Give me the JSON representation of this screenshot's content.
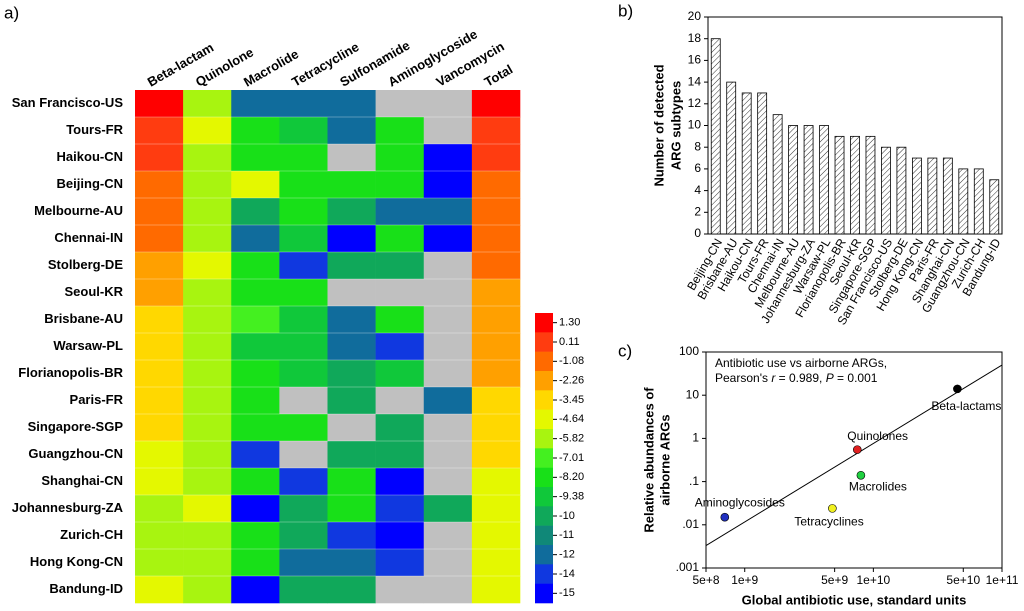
{
  "chart_data": [
    {
      "type": "heatmap",
      "panel": "a)",
      "columns": [
        "Beta-lactam",
        "Quinolone",
        "Macrolide",
        "Tetracycline",
        "Sulfonamide",
        "Aminoglycoside",
        "Vancomycin",
        "Total"
      ],
      "rows": [
        "San Francisco-US",
        "Tours-FR",
        "Haikou-CN",
        "Beijing-CN",
        "Melbourne-AU",
        "Chennai-IN",
        "Stolberg-DE",
        "Seoul-KR",
        "Brisbane-AU",
        "Warsaw-PL",
        "Florianopolis-BR",
        "Paris-FR",
        "Singapore-SGP",
        "Guangzhou-CN",
        "Shanghai-CN",
        "Johannesburg-ZA",
        "Zurich-CH",
        "Hong Kong-CN",
        "Bandung-ID"
      ],
      "values": [
        [
          1.3,
          -5.82,
          -12,
          -12,
          -12,
          null,
          null,
          1.3
        ],
        [
          0.11,
          -4.64,
          -8.2,
          -9.38,
          -12,
          -8.2,
          null,
          0.11
        ],
        [
          0.11,
          -5.82,
          -8.2,
          -8.2,
          null,
          -8.2,
          -15,
          0.11
        ],
        [
          -1.08,
          -5.82,
          -4.64,
          -8.2,
          -8.2,
          -8.2,
          -15,
          -1.08
        ],
        [
          -1.08,
          -5.82,
          -10,
          -8.2,
          -10,
          -12,
          -12,
          -1.08
        ],
        [
          -1.08,
          -5.82,
          -12,
          -9.38,
          -15,
          -8.2,
          -15,
          -1.08
        ],
        [
          -2.26,
          -4.64,
          -8.2,
          -14,
          -10,
          -10,
          null,
          -1.08
        ],
        [
          -2.26,
          -5.82,
          -8.2,
          -8.2,
          null,
          null,
          null,
          -2.26
        ],
        [
          -3.45,
          -5.82,
          -7.01,
          -9.38,
          -12,
          -8.2,
          null,
          -2.26
        ],
        [
          -3.45,
          -5.82,
          -9.38,
          -9.38,
          -12,
          -14,
          null,
          -2.26
        ],
        [
          -3.45,
          -5.82,
          -8.2,
          -9.38,
          -10,
          -9.38,
          null,
          -2.26
        ],
        [
          -3.45,
          -5.82,
          -8.2,
          null,
          -10,
          null,
          -12,
          -3.45
        ],
        [
          -3.45,
          -5.82,
          -8.2,
          -8.2,
          null,
          -10,
          null,
          -3.45
        ],
        [
          -4.64,
          -5.82,
          -14,
          null,
          -10,
          -10,
          null,
          -3.45
        ],
        [
          -4.64,
          -5.82,
          -8.2,
          -14,
          -8.2,
          -15,
          null,
          -4.64
        ],
        [
          -5.82,
          -4.64,
          -15,
          -10,
          -8.2,
          -14,
          -10,
          -4.64
        ],
        [
          -5.82,
          -5.82,
          -8.2,
          -10,
          -14,
          -15,
          null,
          -4.64
        ],
        [
          -5.82,
          -5.82,
          -8.2,
          -12,
          -12,
          -14,
          null,
          -4.64
        ],
        [
          -4.64,
          -5.82,
          -15,
          -10,
          -10,
          null,
          null,
          -4.64
        ]
      ],
      "missing_color": "#c0c0c0",
      "colorbar": {
        "ticks": [
          {
            "value": 1.3,
            "label": "1.30"
          },
          0.11,
          -1.08,
          -2.26,
          -3.45,
          -4.64,
          -5.82,
          -7.01,
          {
            "value": -8.2,
            "label": "-8.20"
          },
          -9.38,
          -10,
          -11,
          -12,
          -14,
          -15
        ],
        "colors": [
          "#ff0000",
          "#ff3c10",
          "#ff6a00",
          "#ffa000",
          "#ffd800",
          "#e4f800",
          "#a8f410",
          "#44f020",
          "#18e018",
          "#10c83a",
          "#10a85a",
          "#108878",
          "#106c9c",
          "#1038e0",
          "#0000ff"
        ]
      }
    },
    {
      "type": "bar",
      "panel": "b)",
      "ylabel": [
        "Number of detected",
        "ARG subtypes"
      ],
      "categories": [
        "Beijing-CN",
        "Brisbane-AU",
        "Haikou-CN",
        "Tours-FR",
        "Chennai-IN",
        "Melbourne-AU",
        "Johannesburg-ZA",
        "Warsaw-PL",
        "Florianopolis-BR",
        "Seoul-KR",
        "Singapore-SGP",
        "San Francisco-US",
        "Stolberg-DE",
        "Hong Kong-CN",
        "Paris-FR",
        "Shanghai-CN",
        "Guangzhou-CN",
        "Zurich-CH",
        "Bandung-ID"
      ],
      "values": [
        18,
        14,
        13,
        13,
        11,
        10,
        10,
        10,
        9,
        9,
        9,
        8,
        8,
        7,
        7,
        7,
        6,
        6,
        5
      ],
      "ylim": [
        0,
        20
      ],
      "yticks": [
        0,
        2,
        4,
        6,
        8,
        10,
        12,
        14,
        16,
        18,
        20
      ],
      "hatch": true
    },
    {
      "type": "scatter",
      "panel": "c)",
      "annotation": [
        "Antibiotic use vs airborne ARGs,",
        [
          "Pearson's ",
          "r",
          " = 0.989, ",
          "P",
          " = 0.001"
        ]
      ],
      "xlabel": "Global antibiotic use, standard units",
      "ylabel": [
        "Relative abundances of",
        "airborne ARGs"
      ],
      "xscale": "log",
      "yscale": "log",
      "xlim": [
        500000000,
        100000000000
      ],
      "xticks": [
        {
          "value": 500000000,
          "label": "5e+8"
        },
        {
          "value": 1000000000,
          "label": "1e+9"
        },
        {
          "value": 5000000000,
          "label": "5e+9"
        },
        {
          "value": 10000000000,
          "label": "1e+10"
        },
        {
          "value": 50000000000,
          "label": "5e+10"
        },
        {
          "value": 100000000000,
          "label": "1e+11"
        }
      ],
      "ylim": [
        0.001,
        100
      ],
      "yticks": [
        {
          "value": 0.001,
          "label": ".001"
        },
        {
          "value": 0.01,
          "label": ".01"
        },
        {
          "value": 0.1,
          "label": ".1"
        },
        1,
        10,
        100
      ],
      "points": [
        {
          "name": "Beta-lactams",
          "color": "#000000",
          "x": 45000000000,
          "y": 14
        },
        {
          "name": "Quinolones",
          "color": "#e02020",
          "x": 7500000000,
          "y": 0.55
        },
        {
          "name": "Macrolides",
          "color": "#20d040",
          "x": 8000000000,
          "y": 0.14
        },
        {
          "name": "Tetracyclines",
          "color": "#f0f020",
          "x": 4800000000,
          "y": 0.024
        },
        {
          "name": "Aminoglycosides",
          "color": "#2030c0",
          "x": 700000000,
          "y": 0.015
        }
      ],
      "fit_line": {
        "x": [
          500000000,
          100000000000
        ],
        "y": [
          0.0033,
          50
        ]
      }
    }
  ]
}
